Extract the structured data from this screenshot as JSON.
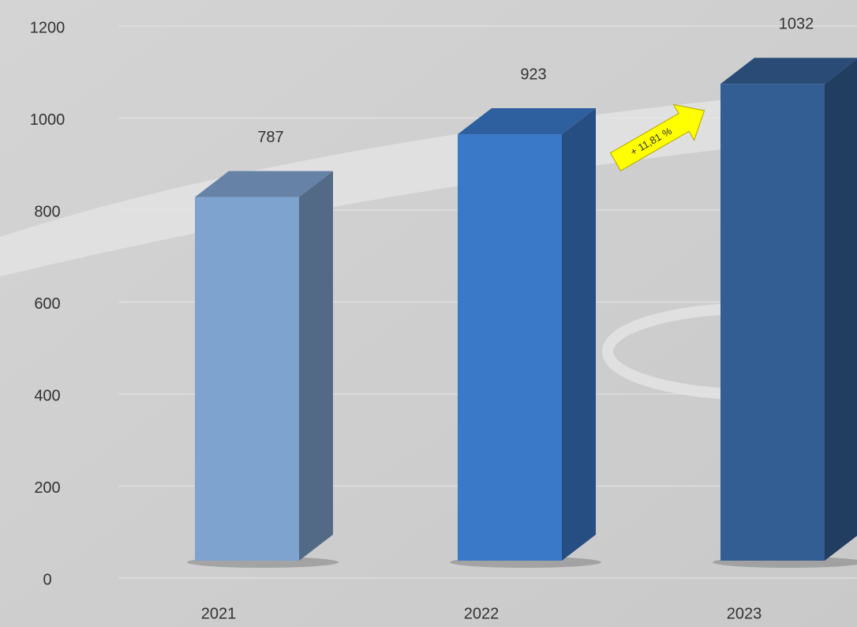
{
  "chart_data": {
    "type": "bar3d",
    "categories": [
      "2021",
      "2022",
      "2023"
    ],
    "values": [
      787,
      923,
      1032
    ],
    "colors": [
      "#7fa3cf",
      "#3a78c8",
      "#335e94"
    ],
    "ylim": [
      0,
      1200
    ],
    "yticks": [
      0,
      200,
      400,
      600,
      800,
      1000,
      1200
    ],
    "grid": true,
    "annotation": "+ 11,81 %"
  }
}
